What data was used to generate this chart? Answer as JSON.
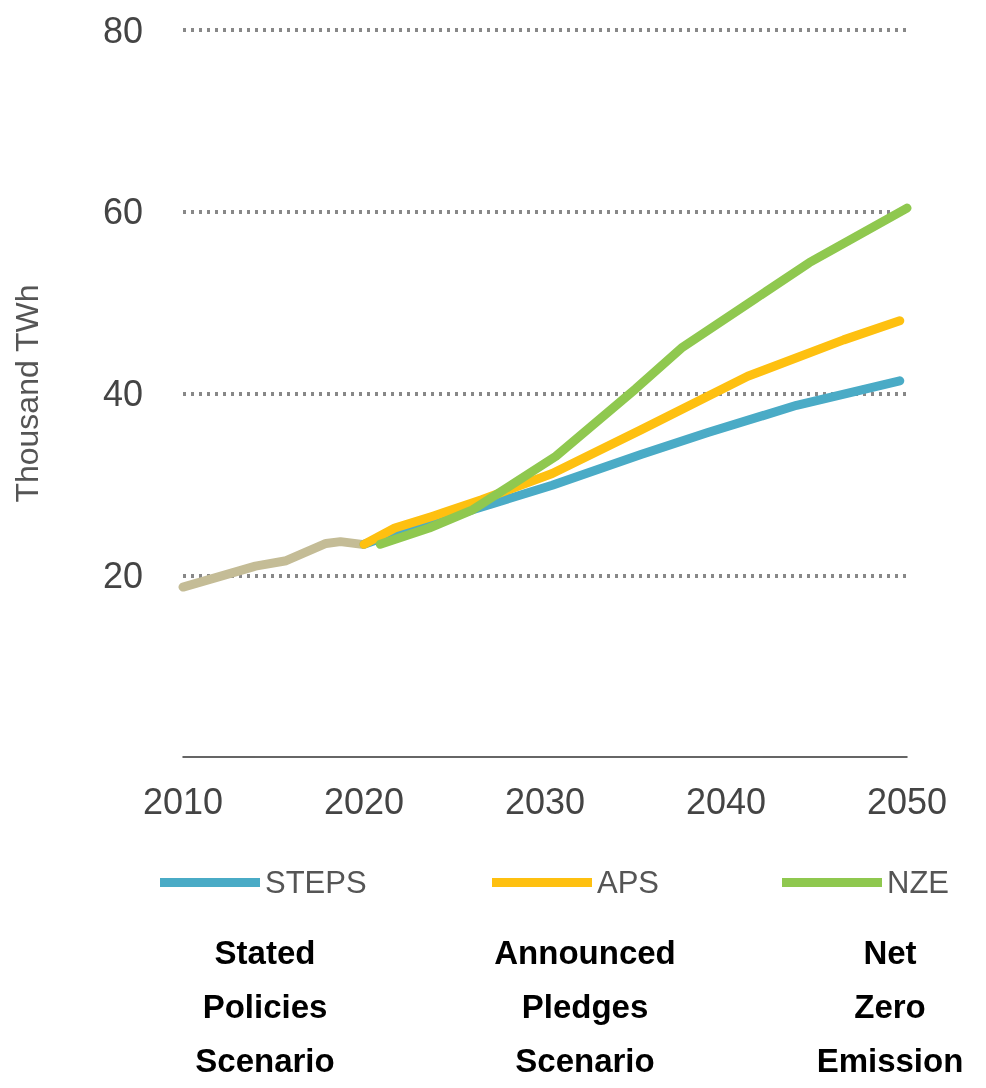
{
  "chart_data": {
    "type": "line",
    "ylabel": "Thousand TWh",
    "xlim": [
      2010,
      2050
    ],
    "xticks": [
      2010,
      2020,
      2030,
      2040,
      2050
    ],
    "ylim": [
      0,
      80
    ],
    "yticks": [
      20,
      40,
      60,
      80
    ],
    "grid": "y",
    "legend": "bottom",
    "marker": "none",
    "line_style": "solid",
    "series": [
      {
        "color": "#c4bc96",
        "x": [
          2010,
          2014,
          2015.7,
          2017.9,
          2018.7,
          2019.9
        ],
        "values": [
          18.7,
          21.0,
          21.6,
          23.5,
          23.7,
          23.4
        ]
      },
      {
        "name": "STEPS",
        "color": "#4aabc6",
        "x": [
          2020,
          2022,
          2024,
          2026,
          2030.4,
          2035.3,
          2039,
          2043.9,
          2049.6
        ],
        "values": [
          23.4,
          24.8,
          25.9,
          27.2,
          29.9,
          33.3,
          35.7,
          38.7,
          41.4
        ]
      },
      {
        "name": "APS",
        "color": "#fec010",
        "x": [
          2020,
          2021.7,
          2023.8,
          2026.5,
          2030.4,
          2035.3,
          2041.2,
          2046.5,
          2049.6
        ],
        "values": [
          23.4,
          25.2,
          26.5,
          28.3,
          31.2,
          36.0,
          41.9,
          45.9,
          48.0
        ]
      },
      {
        "name": "NZE",
        "color": "#8fc84f",
        "x": [
          2020.9,
          2023.6,
          2026,
          2030.6,
          2035,
          2037.6,
          2041.6,
          2044.6,
          2050
        ],
        "values": [
          23.4,
          25.2,
          27.2,
          33.1,
          40.5,
          45.1,
          50.4,
          54.4,
          60.4
        ]
      }
    ],
    "annotations": [
      "Stated Policies Scenario",
      "Announced Pledges Scenario",
      "Net Zero Emission"
    ]
  }
}
